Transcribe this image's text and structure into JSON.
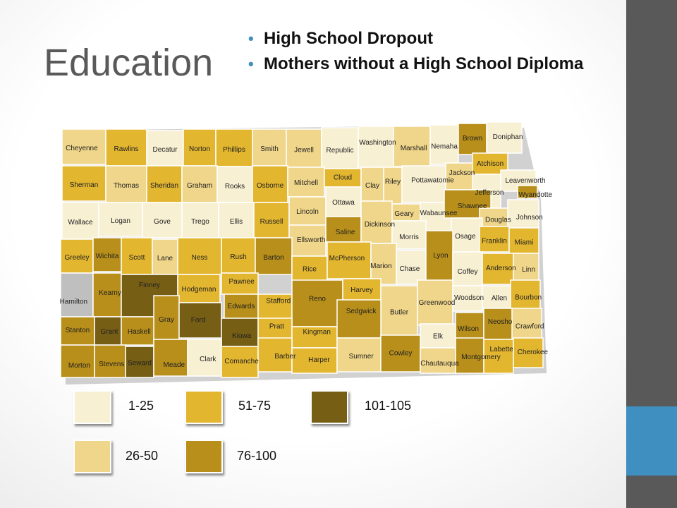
{
  "title": "Education",
  "bullets": [
    "High School Dropout",
    "Mothers without a High School Diploma"
  ],
  "legend": [
    {
      "label": "1-25",
      "color": "#f8f0d3"
    },
    {
      "label": "51-75",
      "color": "#e3b62f"
    },
    {
      "label": "101-105",
      "color": "#765e15"
    },
    {
      "label": "26-50",
      "color": "#f0d68a"
    },
    {
      "label": "76-100",
      "color": "#b88f1a"
    }
  ],
  "colors": {
    "c1": "#f8f0d3",
    "c2": "#f0d68a",
    "c3": "#e3b62f",
    "c4": "#b88f1a",
    "c5": "#765e15",
    "na": "#bfbfbf",
    "accent": "#3f8fc0",
    "sidebar": "#595959"
  },
  "counties": [
    {
      "name": "Cheyenne",
      "cls": "c2"
    },
    {
      "name": "Rawlins",
      "cls": "c3"
    },
    {
      "name": "Decatur",
      "cls": "c1"
    },
    {
      "name": "Norton",
      "cls": "c3"
    },
    {
      "name": "Phillips",
      "cls": "c3"
    },
    {
      "name": "Smith",
      "cls": "c2"
    },
    {
      "name": "Jewell",
      "cls": "c2"
    },
    {
      "name": "Republic",
      "cls": "c1"
    },
    {
      "name": "Washington",
      "cls": "c1"
    },
    {
      "name": "Marshall",
      "cls": "c2"
    },
    {
      "name": "Nemaha",
      "cls": "c1"
    },
    {
      "name": "Brown",
      "cls": "c4"
    },
    {
      "name": "Doniphan",
      "cls": "c1"
    },
    {
      "name": "Sherman",
      "cls": "c3"
    },
    {
      "name": "Thomas",
      "cls": "c2"
    },
    {
      "name": "Sheridan",
      "cls": "c3"
    },
    {
      "name": "Graham",
      "cls": "c2"
    },
    {
      "name": "Rooks",
      "cls": "c1"
    },
    {
      "name": "Osborne",
      "cls": "c3"
    },
    {
      "name": "Mitchell",
      "cls": "c2"
    },
    {
      "name": "Cloud",
      "cls": "c3"
    },
    {
      "name": "Clay",
      "cls": "c2"
    },
    {
      "name": "Riley",
      "cls": "c2"
    },
    {
      "name": "Pottawatomie",
      "cls": "c1"
    },
    {
      "name": "Jackson",
      "cls": "c2"
    },
    {
      "name": "Atchison",
      "cls": "c3"
    },
    {
      "name": "Jefferson",
      "cls": "c1"
    },
    {
      "name": "Leavenworth",
      "cls": "c1"
    },
    {
      "name": "Wyandotte",
      "cls": "c4"
    },
    {
      "name": "Wallace",
      "cls": "c1"
    },
    {
      "name": "Logan",
      "cls": "c1"
    },
    {
      "name": "Gove",
      "cls": "c1"
    },
    {
      "name": "Trego",
      "cls": "c1"
    },
    {
      "name": "Ellis",
      "cls": "c1"
    },
    {
      "name": "Russell",
      "cls": "c3"
    },
    {
      "name": "Lincoln",
      "cls": "c2"
    },
    {
      "name": "Ottawa",
      "cls": "c1"
    },
    {
      "name": "Geary",
      "cls": "c2"
    },
    {
      "name": "Wabaunsee",
      "cls": "c1"
    },
    {
      "name": "Shawnee",
      "cls": "c4"
    },
    {
      "name": "Douglas",
      "cls": "c2"
    },
    {
      "name": "Johnson",
      "cls": "c1"
    },
    {
      "name": "Ellsworth",
      "cls": "c2"
    },
    {
      "name": "Saline",
      "cls": "c4"
    },
    {
      "name": "Dickinson",
      "cls": "c2"
    },
    {
      "name": "Morris",
      "cls": "c1"
    },
    {
      "name": "Osage",
      "cls": "c1"
    },
    {
      "name": "Franklin",
      "cls": "c3"
    },
    {
      "name": "Miami",
      "cls": "c3"
    },
    {
      "name": "Greeley",
      "cls": "c3"
    },
    {
      "name": "Wichita",
      "cls": "c4"
    },
    {
      "name": "Scott",
      "cls": "c3"
    },
    {
      "name": "Lane",
      "cls": "c2"
    },
    {
      "name": "Ness",
      "cls": "c3"
    },
    {
      "name": "Rush",
      "cls": "c3"
    },
    {
      "name": "Barton",
      "cls": "c4"
    },
    {
      "name": "Rice",
      "cls": "c3"
    },
    {
      "name": "McPherson",
      "cls": "c3"
    },
    {
      "name": "Marion",
      "cls": "c2"
    },
    {
      "name": "Chase",
      "cls": "c1"
    },
    {
      "name": "Lyon",
      "cls": "c4"
    },
    {
      "name": "Coffey",
      "cls": "c1"
    },
    {
      "name": "Anderson",
      "cls": "c3"
    },
    {
      "name": "Linn",
      "cls": "c2"
    },
    {
      "name": "Hamilton",
      "cls": "na"
    },
    {
      "name": "Kearny",
      "cls": "c4"
    },
    {
      "name": "Finney",
      "cls": "c5"
    },
    {
      "name": "Hodgeman",
      "cls": "c3"
    },
    {
      "name": "Pawnee",
      "cls": "c3"
    },
    {
      "name": "Edwards",
      "cls": "c4"
    },
    {
      "name": "Stafford",
      "cls": "c3"
    },
    {
      "name": "Reno",
      "cls": "c4"
    },
    {
      "name": "Harvey",
      "cls": "c3"
    },
    {
      "name": "Butler",
      "cls": "c2"
    },
    {
      "name": "Greenwood",
      "cls": "c2"
    },
    {
      "name": "Woodson",
      "cls": "c1"
    },
    {
      "name": "Allen",
      "cls": "c1"
    },
    {
      "name": "Bourbon",
      "cls": "c3"
    },
    {
      "name": "Gray",
      "cls": "c4"
    },
    {
      "name": "Ford",
      "cls": "c5"
    },
    {
      "name": "Kiowa",
      "cls": "c5"
    },
    {
      "name": "Pratt",
      "cls": "c3"
    },
    {
      "name": "Kingman",
      "cls": "c3"
    },
    {
      "name": "Sedgwick",
      "cls": "c4"
    },
    {
      "name": "Elk",
      "cls": "c1"
    },
    {
      "name": "Wilson",
      "cls": "c4"
    },
    {
      "name": "Neosho",
      "cls": "c4"
    },
    {
      "name": "Crawford",
      "cls": "c2"
    },
    {
      "name": "Stanton",
      "cls": "c4"
    },
    {
      "name": "Grant",
      "cls": "c5"
    },
    {
      "name": "Haskell",
      "cls": "c4"
    },
    {
      "name": "Morton",
      "cls": "c4"
    },
    {
      "name": "Stevens",
      "cls": "c4"
    },
    {
      "name": "Seward",
      "cls": "c5"
    },
    {
      "name": "Meade",
      "cls": "c4"
    },
    {
      "name": "Clark",
      "cls": "c1"
    },
    {
      "name": "Comanche",
      "cls": "c3"
    },
    {
      "name": "Barber",
      "cls": "c3"
    },
    {
      "name": "Harper",
      "cls": "c3"
    },
    {
      "name": "Sumner",
      "cls": "c2"
    },
    {
      "name": "Cowley",
      "cls": "c4"
    },
    {
      "name": "Chautauqua",
      "cls": "c2"
    },
    {
      "name": "Montgomery",
      "cls": "c4"
    },
    {
      "name": "Labette",
      "cls": "c3"
    },
    {
      "name": "Cherokee",
      "cls": "c3"
    }
  ]
}
